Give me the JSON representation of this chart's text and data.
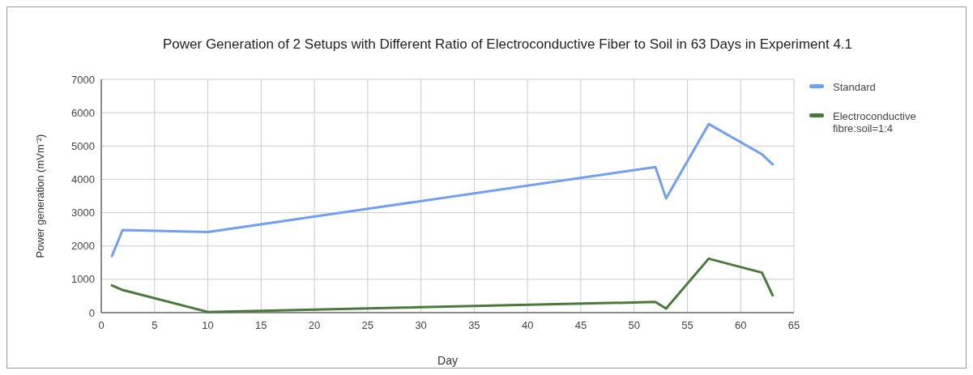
{
  "chart_data": {
    "type": "line",
    "title": "Power Generation of 2 Setups with Different Ratio of Electroconductive Fiber to Soil in 63 Days in Experiment 4.1",
    "xlabel": "Day",
    "ylabel": "Power generation (mVm⁻²)",
    "x": [
      1,
      2,
      10,
      52,
      53,
      57,
      62,
      63
    ],
    "series": [
      {
        "name": "Standard",
        "color": "#6fa0f5",
        "values": [
          1700,
          2480,
          2420,
          4370,
          3430,
          5660,
          4750,
          4450
        ]
      },
      {
        "name": "Electroconductive fibre:soil=1:4",
        "color": "#4a7a3a",
        "values": [
          820,
          680,
          20,
          320,
          120,
          1620,
          1200,
          520
        ]
      }
    ],
    "xlim": [
      0,
      65
    ],
    "xticks": [
      0,
      5,
      10,
      15,
      20,
      25,
      30,
      35,
      40,
      45,
      50,
      55,
      60,
      65
    ],
    "ylim": [
      0,
      7000
    ],
    "yticks": [
      0,
      1000,
      2000,
      3000,
      4000,
      5000,
      6000,
      7000
    ],
    "grid": true,
    "legend": "right",
    "marker": "none",
    "line_style": "solid"
  }
}
